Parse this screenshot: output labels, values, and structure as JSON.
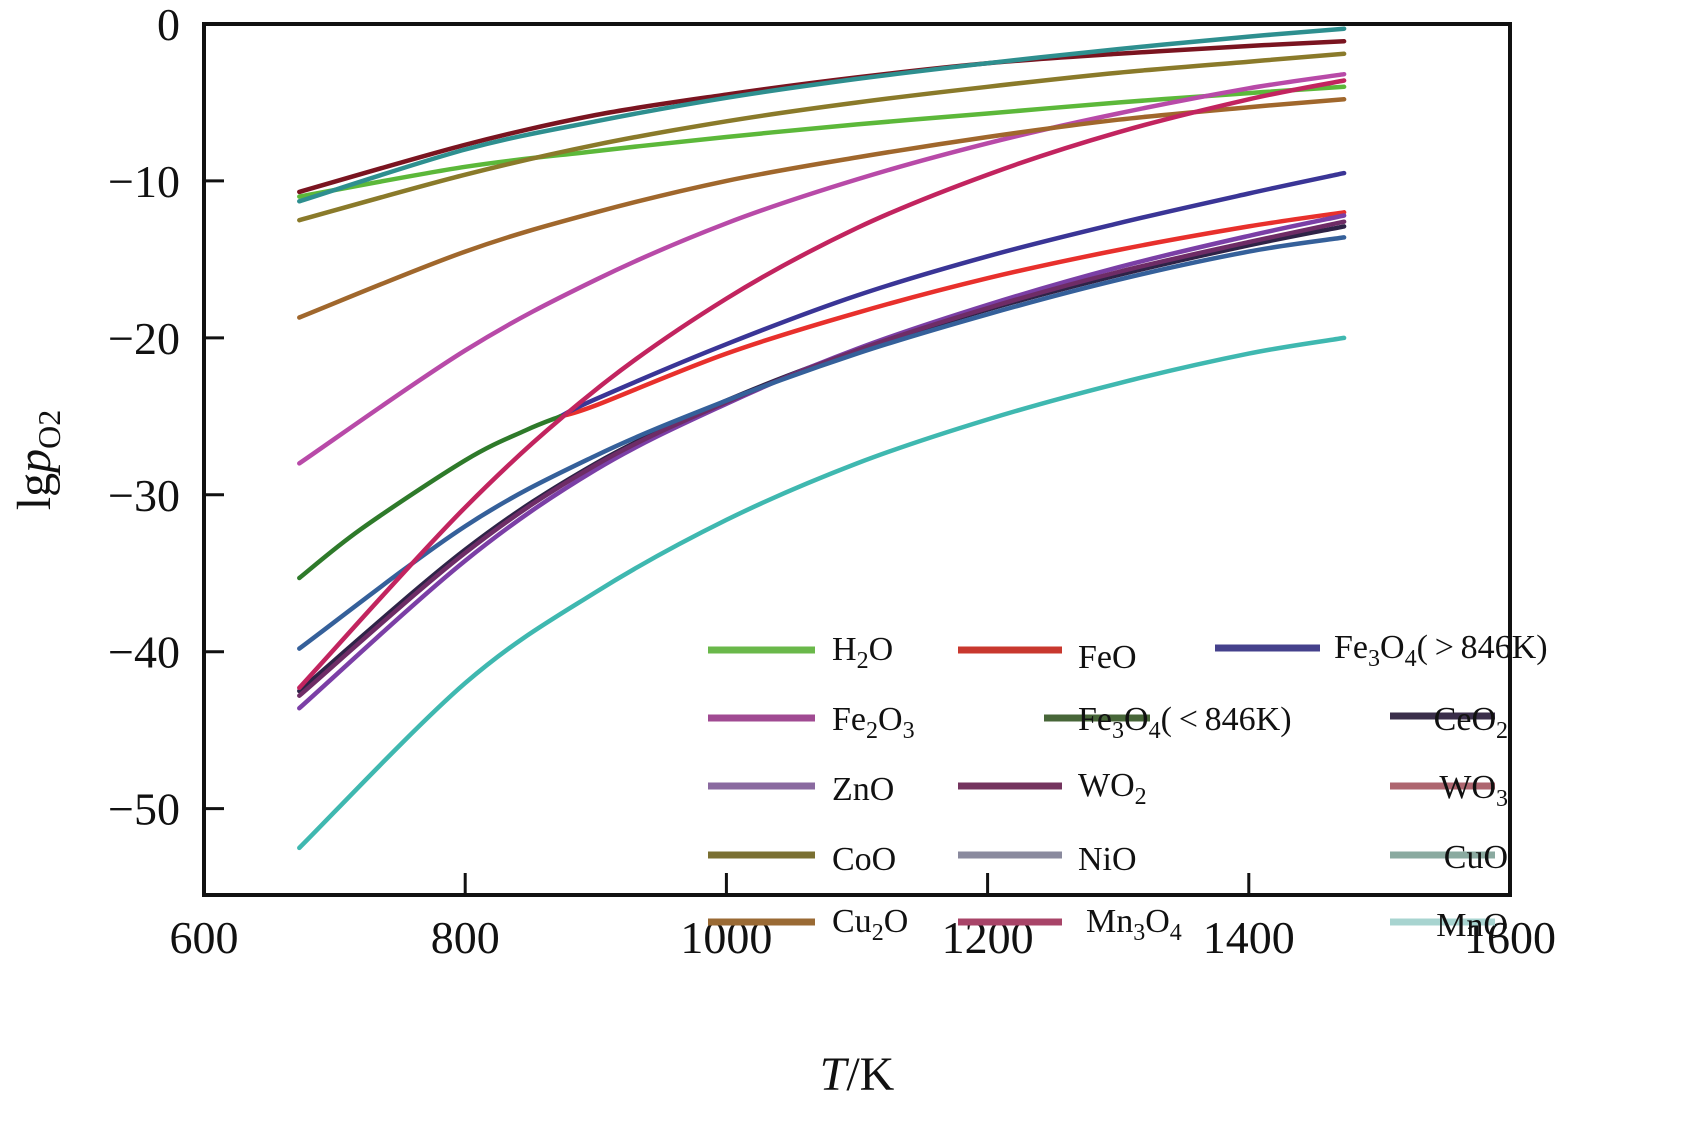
{
  "chart_data": {
    "type": "line",
    "title": "",
    "xlabel": "T/K",
    "xlabel_italic_part": "T",
    "xlabel_rest": "/K",
    "ylabel": "lgp_O2",
    "ylabel_main": "lg",
    "ylabel_p": "p",
    "ylabel_sub": "O2",
    "xlim": [
      600,
      1600
    ],
    "ylim": [
      -55.5,
      0
    ],
    "xticks": [
      600,
      800,
      1000,
      1200,
      1400,
      1600
    ],
    "xtick_labels": [
      "600",
      "800",
      "1000",
      "1200",
      "1400",
      "1600"
    ],
    "yticks": [
      0,
      -10,
      -20,
      -30,
      -40,
      -50
    ],
    "ytick_labels": [
      "0",
      "−10",
      "−20",
      "−30",
      "−40",
      "−50"
    ],
    "grid": false,
    "legend_placement": "bottom-right",
    "series": [
      {
        "name": "H2O",
        "label_base": "H",
        "label_sub": "2",
        "label_tail": "O",
        "color": "#5cb83a",
        "x": [
          673,
          800,
          900,
          1000,
          1100,
          1200,
          1300,
          1400,
          1473
        ],
        "y": [
          -11.0,
          -9.1,
          -8.1,
          -7.2,
          -6.4,
          -5.7,
          -5.0,
          -4.4,
          -4.0
        ]
      },
      {
        "name": "FeO",
        "label_base": "FeO",
        "label_sub": "",
        "label_tail": "",
        "color": "#e8302c",
        "x": [
          873,
          900,
          1000,
          1100,
          1200,
          1300,
          1400,
          1473
        ],
        "y": [
          -25.0,
          -24.3,
          -21.0,
          -18.4,
          -16.2,
          -14.4,
          -12.9,
          -12.0
        ]
      },
      {
        "name": "Fe3O4(>846K)",
        "label_base": "Fe",
        "label_sub": "3",
        "label_tail": "O",
        "label_sub2": "4",
        "label_suffix": "( > 846K)",
        "color": "#3a3596",
        "x": [
          873,
          900,
          1000,
          1100,
          1200,
          1300,
          1400,
          1473
        ],
        "y": [
          -25.0,
          -23.9,
          -20.4,
          -17.3,
          -14.8,
          -12.7,
          -10.8,
          -9.5
        ]
      },
      {
        "name": "Fe2O3",
        "label_base": "Fe",
        "label_sub": "2",
        "label_tail": "O",
        "label_sub2": "3",
        "label_suffix": "",
        "color": "#b84aa8",
        "x": [
          673,
          800,
          900,
          1000,
          1100,
          1200,
          1300,
          1400,
          1473
        ],
        "y": [
          -28.0,
          -20.8,
          -16.3,
          -12.7,
          -9.9,
          -7.6,
          -5.7,
          -4.1,
          -3.2
        ]
      },
      {
        "name": "Fe3O4(<846K)",
        "label_base": "Fe",
        "label_sub": "3",
        "label_tail": "O",
        "label_sub2": "4",
        "label_suffix": "( < 846K)",
        "color": "#2e7a2a",
        "x": [
          673,
          720,
          800,
          846,
          873
        ],
        "y": [
          -35.3,
          -32.2,
          -27.8,
          -25.9,
          -25.0
        ]
      },
      {
        "name": "CeO2",
        "label_base": "CeO",
        "label_sub": "2",
        "label_tail": "",
        "color": "#2e2347",
        "x": [
          673,
          800,
          900,
          1000,
          1100,
          1200,
          1300,
          1400,
          1473
        ],
        "y": [
          -42.5,
          -33.5,
          -28.0,
          -24.0,
          -20.8,
          -18.2,
          -16.0,
          -14.1,
          -12.9
        ]
      },
      {
        "name": "ZnO",
        "label_base": "ZnO",
        "label_sub": "",
        "label_tail": "",
        "color": "#7b3fa6",
        "x": [
          673,
          800,
          900,
          1000,
          1100,
          1200,
          1300,
          1400,
          1473
        ],
        "y": [
          -43.6,
          -34.2,
          -28.4,
          -24.2,
          -20.7,
          -17.9,
          -15.5,
          -13.5,
          -12.2
        ]
      },
      {
        "name": "WO2",
        "label_base": "WO",
        "label_sub": "2",
        "label_tail": "",
        "color": "#6e2c66",
        "x": [
          673,
          800,
          900,
          1000,
          1100,
          1200,
          1300,
          1400,
          1473
        ],
        "y": [
          -42.8,
          -33.7,
          -28.1,
          -24.1,
          -20.8,
          -18.1,
          -15.8,
          -13.9,
          -12.6
        ]
      },
      {
        "name": "WO3",
        "label_base": "WO",
        "label_sub": "3",
        "label_tail": "",
        "color": "#7a1420",
        "x": [
          673,
          800,
          900,
          1000,
          1100,
          1200,
          1300,
          1400,
          1473
        ],
        "y": [
          -10.7,
          -7.7,
          -5.8,
          -4.5,
          -3.4,
          -2.5,
          -1.9,
          -1.4,
          -1.1
        ]
      },
      {
        "name": "CoO",
        "label_base": "CoO",
        "label_sub": "",
        "label_tail": "",
        "color": "#8a7a2a",
        "x": [
          673,
          800,
          900,
          1000,
          1100,
          1200,
          1300,
          1400,
          1473
        ],
        "y": [
          -12.5,
          -9.6,
          -7.7,
          -6.2,
          -5.0,
          -4.0,
          -3.1,
          -2.4,
          -1.9
        ]
      },
      {
        "name": "NiO",
        "label_base": "NiO",
        "label_sub": "",
        "label_tail": "",
        "color": "#35609a",
        "x": [
          673,
          800,
          900,
          1000,
          1100,
          1200,
          1300,
          1400,
          1473
        ],
        "y": [
          -39.8,
          -32.0,
          -27.5,
          -24.0,
          -21.0,
          -18.5,
          -16.3,
          -14.5,
          -13.6
        ]
      },
      {
        "name": "CuO",
        "label_base": "CuO",
        "label_sub": "",
        "label_tail": "",
        "color": "#2e8f8f",
        "x": [
          673,
          800,
          900,
          1000,
          1100,
          1200,
          1300,
          1400,
          1473
        ],
        "y": [
          -11.3,
          -8.0,
          -6.2,
          -4.7,
          -3.5,
          -2.5,
          -1.6,
          -0.8,
          -0.3
        ]
      },
      {
        "name": "Cu2O",
        "label_base": "Cu",
        "label_sub": "2",
        "label_tail": "O",
        "color": "#a0672c",
        "x": [
          673,
          800,
          900,
          1000,
          1100,
          1200,
          1300,
          1400,
          1473
        ],
        "y": [
          -18.7,
          -14.5,
          -12.0,
          -10.0,
          -8.5,
          -7.2,
          -6.1,
          -5.3,
          -4.8
        ]
      },
      {
        "name": "Mn3O4",
        "label_base": "Mn",
        "label_sub": "3",
        "label_tail": "O",
        "label_sub2": "4",
        "label_suffix": "",
        "color": "#c2245f",
        "x": [
          673,
          800,
          900,
          1000,
          1100,
          1200,
          1300,
          1400,
          1473
        ],
        "y": [
          -42.3,
          -30.8,
          -23.3,
          -17.5,
          -13.0,
          -9.6,
          -6.9,
          -4.8,
          -3.6
        ]
      },
      {
        "name": "MnO",
        "label_base": "MnO",
        "label_sub": "",
        "label_tail": "",
        "color": "#3fb8b0",
        "x": [
          673,
          800,
          900,
          1000,
          1100,
          1200,
          1300,
          1400,
          1473
        ],
        "y": [
          -52.5,
          -42.0,
          -36.2,
          -31.6,
          -28.0,
          -25.2,
          -22.9,
          -21.0,
          -20.0
        ]
      }
    ],
    "legend": [
      {
        "name": "H2O",
        "color": "#6ab84a"
      },
      {
        "name": "FeO",
        "color": "#c8382e"
      },
      {
        "name": "Fe3O4(>846K)",
        "color": "#45418c"
      },
      {
        "name": "Fe2O3",
        "color": "#a04a92"
      },
      {
        "name": "Fe3O4(<846K)",
        "color": "#476638"
      },
      {
        "name": "CeO2",
        "color": "#3a2e4a"
      },
      {
        "name": "ZnO",
        "color": "#8a6aa0"
      },
      {
        "name": "WO2",
        "color": "#74345e"
      },
      {
        "name": "WO3",
        "color": "#ae6670"
      },
      {
        "name": "CoO",
        "color": "#7a7032"
      },
      {
        "name": "NiO",
        "color": "#8a8a9e"
      },
      {
        "name": "CuO",
        "color": "#8aaaa0"
      },
      {
        "name": "Cu2O",
        "color": "#9a6a34"
      },
      {
        "name": "Mn3O4",
        "color": "#a84468"
      },
      {
        "name": "MnO",
        "color": "#a8d4d0"
      }
    ]
  }
}
